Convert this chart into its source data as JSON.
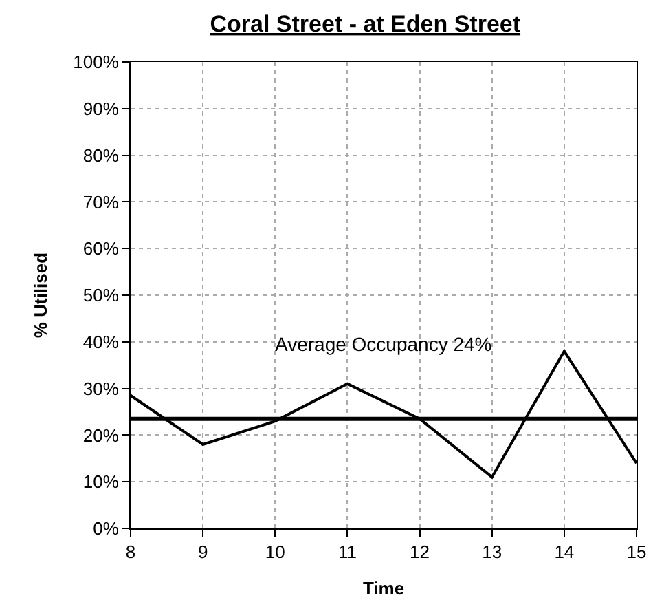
{
  "chart_data": {
    "type": "line",
    "title": "Coral Street - at Eden Street",
    "xlabel": "Time",
    "ylabel": "% Utilised",
    "x": [
      8,
      9,
      10,
      11,
      12,
      13,
      14,
      15
    ],
    "series": [
      {
        "color": "#000000",
        "values": [
          28.5,
          18,
          23,
          31,
          23.5,
          11,
          38,
          14
        ]
      }
    ],
    "xlim": [
      8,
      15
    ],
    "xticks": [
      8,
      9,
      10,
      11,
      12,
      13,
      14,
      15
    ],
    "ylim": [
      0,
      100
    ],
    "yticks": [
      {
        "value": 0,
        "label": "0%"
      },
      {
        "value": 10,
        "label": "10%"
      },
      {
        "value": 20,
        "label": "20%"
      },
      {
        "value": 30,
        "label": "30%"
      },
      {
        "value": 40,
        "label": "40%"
      },
      {
        "value": 50,
        "label": "50%"
      },
      {
        "value": 60,
        "label": "60%"
      },
      {
        "value": 70,
        "label": "70%"
      },
      {
        "value": 80,
        "label": "80%"
      },
      {
        "value": 90,
        "label": "90%"
      },
      {
        "value": 100,
        "label": "100%"
      }
    ],
    "ref_lines": [
      {
        "axis": "y",
        "value": 23.5,
        "label": "Average Occupancy 24%",
        "color": "#000000"
      }
    ],
    "grid": true,
    "marker": "none",
    "line_style": "solid"
  }
}
